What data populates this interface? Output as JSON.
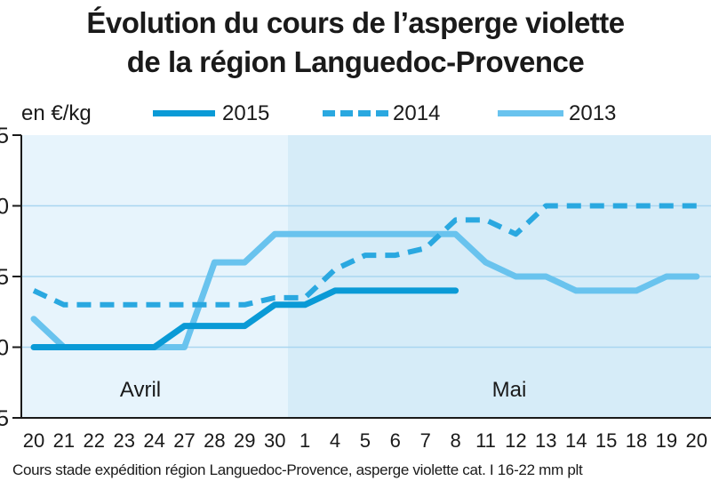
{
  "title_line1": "Évolution du cours de l’asperge violette",
  "title_line2": "de la région Languedoc-Provence",
  "unit_label": "en €/kg",
  "footer": "Cours stade expédition région Languedoc-Provence, asperge violette cat. I 16-22 mm plt",
  "colors": {
    "s2015": "#0a9ad6",
    "s2014": "#2aa8e0",
    "s2013": "#69c3ee",
    "plot_bg_april": "#e7f4fc",
    "plot_bg_may": "#d6ecf8",
    "grid": "#a9d6f0",
    "axis": "#1a1a1a"
  },
  "chart_data": {
    "type": "line",
    "title": "Évolution du cours de l’asperge violette de la région Languedoc-Provence",
    "ylabel": "en €/kg",
    "x_tick_labels": [
      "20",
      "21",
      "22",
      "23",
      "24",
      "27",
      "28",
      "29",
      "30",
      "1",
      "4",
      "5",
      "6",
      "7",
      "8",
      "11",
      "12",
      "13",
      "14",
      "15",
      "18",
      "19",
      "20"
    ],
    "y_tick_labels": [
      "5",
      "0",
      "5",
      "0",
      "5"
    ],
    "ylim": [
      0,
      4
    ],
    "month_labels": [
      "Avril",
      "Mai"
    ],
    "grid": true,
    "legend_position": "top",
    "series": [
      {
        "name": "2015",
        "style": "solid",
        "values": [
          1,
          1,
          1,
          1,
          1,
          1.3,
          1.3,
          1.3,
          1.6,
          1.6,
          1.8,
          1.8,
          1.8,
          1.8,
          1.8,
          null,
          null,
          null,
          null,
          null,
          null,
          null,
          null
        ]
      },
      {
        "name": "2014",
        "style": "dashed",
        "values": [
          1.8,
          1.6,
          1.6,
          1.6,
          1.6,
          1.6,
          1.6,
          1.6,
          1.7,
          1.7,
          2.1,
          2.3,
          2.3,
          2.4,
          2.8,
          2.8,
          2.6,
          3,
          3,
          3,
          3,
          3,
          3
        ]
      },
      {
        "name": "2013",
        "style": "solid",
        "values": [
          1.4,
          1,
          1,
          1,
          1,
          1,
          2.2,
          2.2,
          2.6,
          2.6,
          2.6,
          2.6,
          2.6,
          2.6,
          2.6,
          2.2,
          2,
          2,
          1.8,
          1.8,
          1.8,
          2,
          2
        ]
      }
    ]
  }
}
